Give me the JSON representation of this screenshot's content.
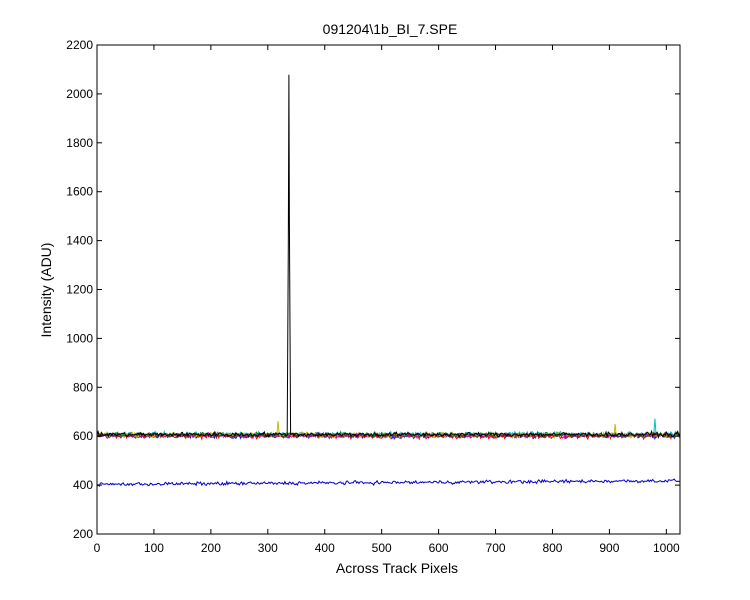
{
  "chart_data": {
    "type": "line",
    "title": "091204\\1b_BI_7.SPE",
    "xlabel": "Across Track Pixels",
    "ylabel": "Intensity (ADU)",
    "xlim": [
      0,
      1024
    ],
    "ylim": [
      200,
      2200
    ],
    "xticks": [
      0,
      100,
      200,
      300,
      400,
      500,
      600,
      700,
      800,
      900,
      1000
    ],
    "yticks": [
      200,
      400,
      600,
      800,
      1000,
      1200,
      1400,
      1600,
      1800,
      2000,
      2200
    ],
    "grid": false,
    "series": [
      {
        "color": "#0000ff",
        "baseline": 602,
        "noise": 9,
        "spikes": []
      },
      {
        "color": "#008000",
        "baseline": 606,
        "noise": 9,
        "spikes": []
      },
      {
        "color": "#ff0000",
        "baseline": 600,
        "noise": 9,
        "spikes": []
      },
      {
        "color": "#00bfbf",
        "baseline": 608,
        "noise": 9,
        "spikes": [
          [
            980,
            672
          ]
        ]
      },
      {
        "color": "#bf00bf",
        "baseline": 603,
        "noise": 9,
        "spikes": []
      },
      {
        "color": "#bfbf00",
        "baseline": 605,
        "noise": 9,
        "spikes": [
          [
            318,
            662
          ],
          [
            910,
            650
          ]
        ]
      },
      {
        "color": "#404040",
        "baseline": 604,
        "noise": 9,
        "spikes": []
      },
      {
        "color": "#000000",
        "baseline": 607,
        "noise": 9,
        "spikes": [
          [
            336,
            1370
          ],
          [
            337,
            2078
          ],
          [
            338,
            1470
          ]
        ]
      },
      {
        "color": "#0000cc",
        "baseline_start": 403,
        "baseline_end": 418,
        "noise": 7,
        "spikes": []
      }
    ]
  }
}
